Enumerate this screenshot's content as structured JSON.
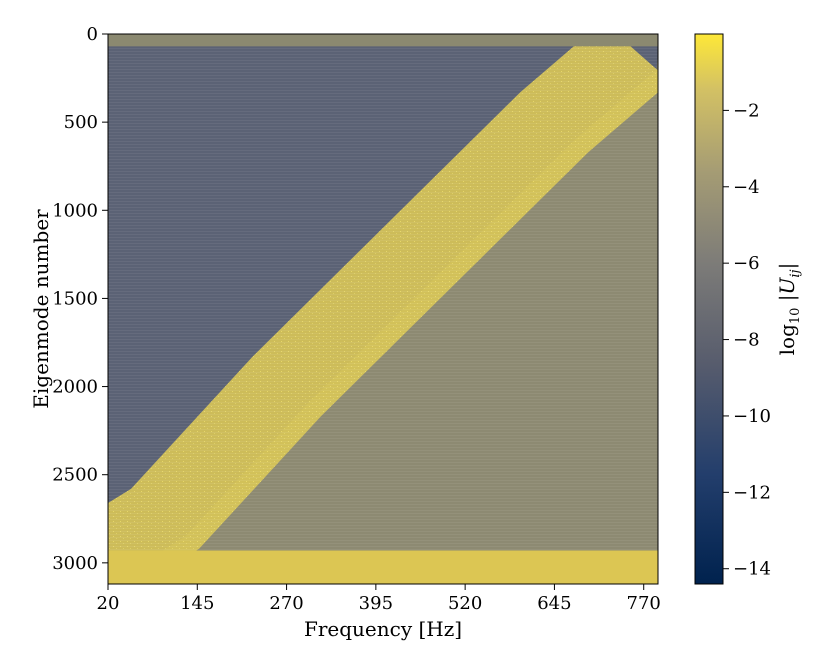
{
  "chart_data": {
    "type": "heatmap",
    "title": "",
    "xlabel": "Frequency [Hz]",
    "ylabel": "Eigenmode number",
    "xlim": [
      20,
      790
    ],
    "ylim": [
      3120,
      0
    ],
    "x_ticks": [
      20,
      145,
      270,
      395,
      520,
      645,
      770
    ],
    "y_ticks": [
      0,
      500,
      1000,
      1500,
      2000,
      2500,
      3000
    ],
    "colorbar": {
      "label": "log10 |U_ij|",
      "label_base": "log",
      "label_sub": "10",
      "label_body": "|U",
      "label_index": "ij",
      "label_close": "|",
      "range": [
        -14.4,
        0
      ],
      "ticks": [
        -2,
        -4,
        -6,
        -8,
        -10,
        -12,
        -14
      ],
      "colormap": "cividis"
    },
    "band": {
      "description_points": [
        {
          "frequency": 20,
          "mode": 2950
        },
        {
          "frequency": 100,
          "mode": 2750
        },
        {
          "frequency": 270,
          "mode": 2000
        },
        {
          "frequency": 395,
          "mode": 1500
        },
        {
          "frequency": 520,
          "mode": 1000
        },
        {
          "frequency": 645,
          "mode": 500
        },
        {
          "frequency": 760,
          "mode": 100
        }
      ]
    },
    "colors": {
      "low": "#00224e",
      "mid": "#7c7b78",
      "high": "#fee838",
      "background_region": "#5b6275",
      "band": "#d9c757"
    }
  }
}
